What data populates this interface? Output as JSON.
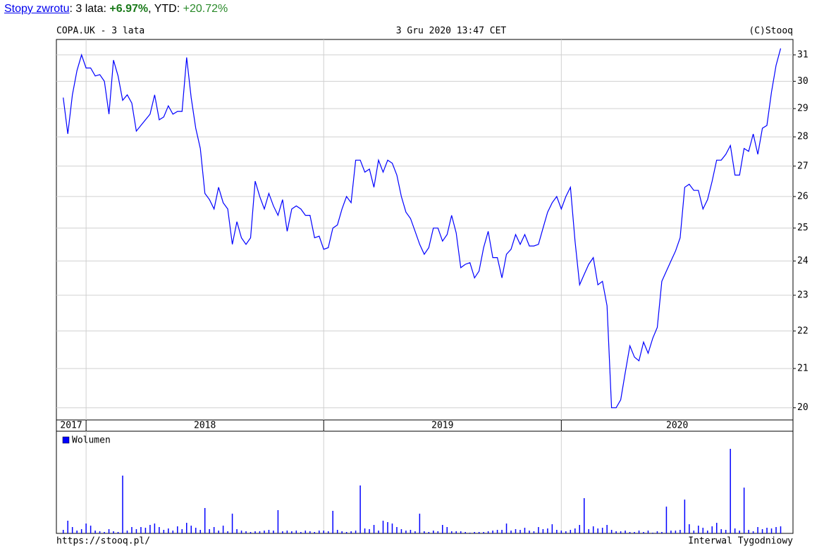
{
  "returns": {
    "link": "Stopy zwrotu",
    "period_label": ": 3 lata: ",
    "period_value": "+6.97%",
    "ytd_label": ", YTD: ",
    "ytd_value": "+20.72%"
  },
  "chart_data": [
    {
      "type": "line",
      "title": "COPA.UK - 3 lata",
      "subtitle": "3 Gru 2020 13:47 CET",
      "source": "(C)Stooq",
      "log_scale": true,
      "grid": true,
      "color": "#0000ff",
      "xlim": [
        -1.5,
        159.7
      ],
      "xticks": [
        {
          "value": -1.5,
          "label": "2017"
        },
        {
          "value": 5,
          "label": "2018"
        },
        {
          "value": 57,
          "label": "2019"
        },
        {
          "value": 109,
          "label": "2020"
        }
      ],
      "ylim": [
        19.7,
        31.6
      ],
      "yticks": [
        20,
        21,
        22,
        23,
        24,
        25,
        26,
        27,
        28,
        29,
        30,
        31
      ],
      "values": [
        29.4,
        28.1,
        29.5,
        30.4,
        31.0,
        30.5,
        30.5,
        30.2,
        30.25,
        30.0,
        28.8,
        30.8,
        30.2,
        29.3,
        29.5,
        29.2,
        28.2,
        28.4,
        28.6,
        28.8,
        29.5,
        28.6,
        28.7,
        29.1,
        28.8,
        28.9,
        28.9,
        30.9,
        29.4,
        28.3,
        27.6,
        26.1,
        25.9,
        25.6,
        26.3,
        25.8,
        25.6,
        24.5,
        25.2,
        24.7,
        24.5,
        24.7,
        26.5,
        26.0,
        25.6,
        26.1,
        25.7,
        25.4,
        25.9,
        24.9,
        25.6,
        25.7,
        25.6,
        25.4,
        25.4,
        24.7,
        24.75,
        24.35,
        24.4,
        25.0,
        25.1,
        25.6,
        26.0,
        25.8,
        27.2,
        27.2,
        26.8,
        26.9,
        26.3,
        27.2,
        26.8,
        27.2,
        27.1,
        26.7,
        26.0,
        25.5,
        25.3,
        24.9,
        24.5,
        24.2,
        24.4,
        25.0,
        25.0,
        24.6,
        24.8,
        25.4,
        24.85,
        23.8,
        23.9,
        23.95,
        23.5,
        23.7,
        24.4,
        24.9,
        24.1,
        24.1,
        23.5,
        24.2,
        24.35,
        24.8,
        24.5,
        24.8,
        24.45,
        24.45,
        24.5,
        25.0,
        25.5,
        25.8,
        26.0,
        25.6,
        26.0,
        26.3,
        24.6,
        23.3,
        23.6,
        23.9,
        24.1,
        23.3,
        23.4,
        22.7,
        20.0,
        20.0,
        20.2,
        20.9,
        21.6,
        21.3,
        21.2,
        21.7,
        21.4,
        21.8,
        22.1,
        23.4,
        23.7,
        24.0,
        24.3,
        24.7,
        26.3,
        26.4,
        26.2,
        26.2,
        25.6,
        25.9,
        26.5,
        27.2,
        27.2,
        27.4,
        27.7,
        26.7,
        26.7,
        27.6,
        27.5,
        28.1,
        27.4,
        28.3,
        28.4,
        29.6,
        30.6,
        31.25
      ]
    },
    {
      "type": "bar",
      "footer_left": "https://stooq.pl/",
      "footer_right": "Interwal Tygodniowy",
      "xlim": [
        -1.5,
        159.7
      ],
      "ylim": [
        0,
        145
      ],
      "series": [
        {
          "name": "Wolumen",
          "color": "#0000ff",
          "values": [
            5,
            18,
            9,
            4,
            6,
            14,
            11,
            4,
            3,
            2,
            6,
            3,
            2,
            82,
            4,
            9,
            6,
            9,
            8,
            12,
            14,
            9,
            5,
            7,
            4,
            10,
            6,
            15,
            11,
            8,
            5,
            36,
            6,
            9,
            4,
            11,
            3,
            28,
            6,
            4,
            3,
            2,
            3,
            3,
            4,
            5,
            4,
            33,
            3,
            4,
            3,
            4,
            2,
            4,
            3,
            2,
            4,
            4,
            3,
            32,
            5,
            3,
            2,
            3,
            4,
            68,
            7,
            6,
            12,
            4,
            18,
            16,
            14,
            9,
            6,
            4,
            5,
            3,
            28,
            3,
            2,
            4,
            3,
            12,
            9,
            3,
            3,
            3,
            2,
            1,
            2,
            2,
            2,
            3,
            4,
            5,
            5,
            14,
            4,
            6,
            5,
            8,
            4,
            3,
            9,
            6,
            7,
            13,
            5,
            4,
            3,
            5,
            7,
            12,
            50,
            6,
            10,
            7,
            8,
            12,
            5,
            3,
            3,
            4,
            2,
            2,
            4,
            2,
            4,
            1,
            3,
            2,
            38,
            4,
            4,
            5,
            48,
            13,
            4,
            11,
            8,
            4,
            10,
            15,
            6,
            5,
            120,
            7,
            4,
            65,
            5,
            3,
            9,
            6,
            8,
            7,
            9,
            10
          ]
        }
      ]
    }
  ]
}
